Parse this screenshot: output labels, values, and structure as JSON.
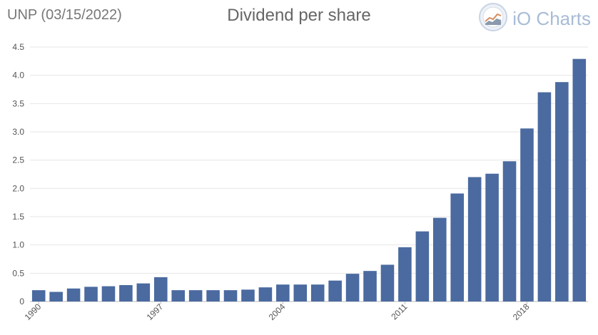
{
  "header": {
    "ticker_label": "UNP (03/15/2022)",
    "brand": "iO Charts",
    "brand_icon": "io-charts-logo-icon"
  },
  "chart_data": {
    "type": "bar",
    "title": "Dividend per share",
    "xlabel": "",
    "ylabel": "",
    "categories": [
      "1990",
      "1991",
      "1992",
      "1993",
      "1994",
      "1995",
      "1996",
      "1997",
      "1998",
      "1999",
      "2000",
      "2001",
      "2002",
      "2003",
      "2004",
      "2005",
      "2006",
      "2007",
      "2008",
      "2009",
      "2010",
      "2011",
      "2012",
      "2013",
      "2014",
      "2015",
      "2016",
      "2017",
      "2018",
      "2019",
      "2020",
      "2021"
    ],
    "values": [
      0.2,
      0.17,
      0.23,
      0.26,
      0.27,
      0.29,
      0.32,
      0.43,
      0.2,
      0.2,
      0.2,
      0.2,
      0.21,
      0.25,
      0.3,
      0.3,
      0.3,
      0.37,
      0.49,
      0.54,
      0.65,
      0.96,
      1.24,
      1.48,
      1.91,
      2.2,
      2.26,
      2.48,
      3.06,
      3.7,
      3.88,
      4.29
    ],
    "x_tick_labels": [
      "1990",
      "1997",
      "2004",
      "2011",
      "2018"
    ],
    "y_ticks": [
      "0",
      "0.5",
      "1.0",
      "1.5",
      "2.0",
      "2.5",
      "3.0",
      "3.5",
      "4.0",
      "4.5"
    ],
    "ylim": [
      0,
      4.5
    ],
    "grid": true,
    "colors": {
      "bar": "#4a6aa0",
      "grid": "#e6e6e6",
      "axis": "#bbbbbb"
    }
  }
}
